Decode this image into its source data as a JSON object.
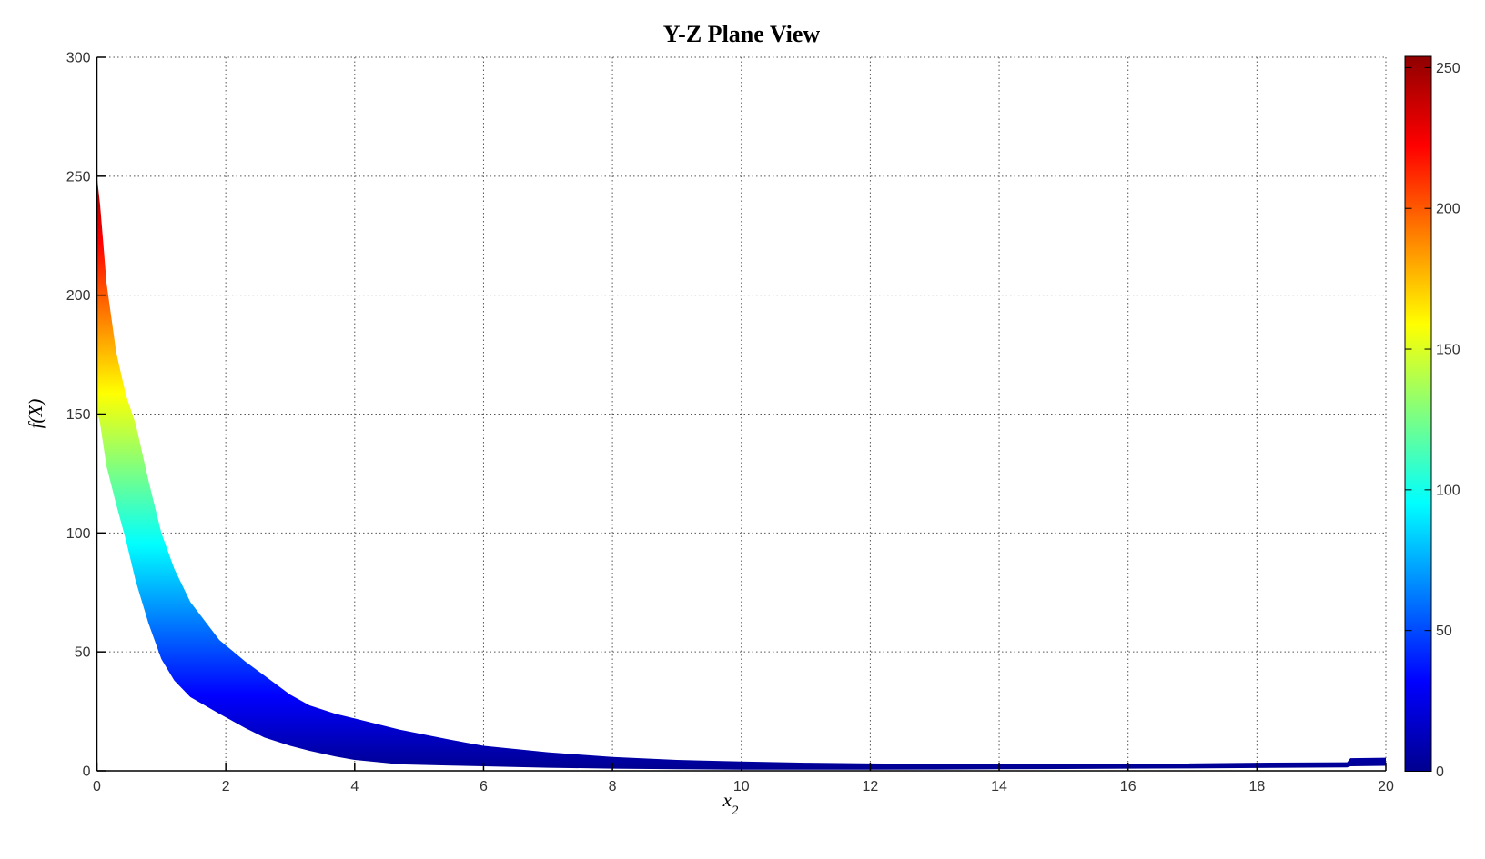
{
  "chart_data": {
    "type": "area",
    "title": "Y-Z Plane View",
    "xlabel_base": "x",
    "xlabel_sub": "2",
    "ylabel": "f(X)",
    "xlim": [
      0,
      20
    ],
    "ylim": [
      0,
      300
    ],
    "x_ticks": [
      0,
      2,
      4,
      6,
      8,
      10,
      12,
      14,
      16,
      18,
      20
    ],
    "y_ticks": [
      0,
      50,
      100,
      150,
      200,
      250,
      300
    ],
    "grid": "dotted",
    "legend": "none",
    "band": {
      "description": "Side projection (Y-Z view) of surface f(X); filled band between lower and upper envelopes over x1, colored by f value with jet colormap",
      "x": [
        0,
        0.05,
        0.15,
        0.3,
        0.45,
        0.6,
        0.8,
        1.0,
        1.2,
        1.45,
        1.9,
        2.3,
        2.6,
        3.0,
        3.3,
        3.7,
        4.0,
        4.7,
        5.5,
        6.0,
        7.0,
        8.0,
        9.0,
        10,
        11,
        12,
        13,
        14,
        15,
        16,
        16.9,
        16.95,
        18,
        19.4,
        19.45,
        20
      ],
      "upper": [
        250,
        238,
        205,
        176,
        158,
        146,
        122,
        100,
        85,
        71,
        55,
        46,
        40,
        32,
        27.5,
        24,
        22,
        17.3,
        13,
        10.5,
        7.8,
        5.8,
        4.6,
        3.9,
        3.4,
        3.1,
        2.9,
        2.8,
        2.7,
        2.7,
        2.7,
        3.1,
        3.4,
        3.6,
        5.3,
        5.5
      ],
      "lower": [
        152,
        146,
        128,
        112,
        97,
        80,
        62,
        47,
        38,
        31,
        24,
        18,
        14,
        10.5,
        8.4,
        6,
        4.6,
        2.7,
        2.2,
        1.9,
        1.3,
        0.9,
        0.65,
        0.5,
        0.5,
        0.5,
        0.55,
        0.65,
        0.75,
        0.9,
        1.0,
        1.0,
        1.2,
        1.4,
        1.9,
        2.1
      ]
    },
    "colorbar": {
      "ticks": [
        0,
        50,
        100,
        150,
        200,
        250
      ],
      "vmin": 0,
      "vmax": 254,
      "colormap": "jet",
      "stops": [
        {
          "offset": 0.0,
          "color": "#00008F"
        },
        {
          "offset": 0.125,
          "color": "#0000FF"
        },
        {
          "offset": 0.375,
          "color": "#00FFFF"
        },
        {
          "offset": 0.625,
          "color": "#FFFF00"
        },
        {
          "offset": 0.875,
          "color": "#FF0000"
        },
        {
          "offset": 1.0,
          "color": "#8F0000"
        }
      ]
    },
    "colors": {
      "background": "#FFFFFF",
      "axis": "#000000",
      "grid": "#555555",
      "tick_label": "#333333"
    }
  }
}
